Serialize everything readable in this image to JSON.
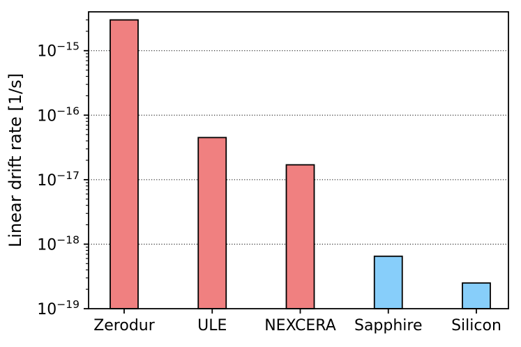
{
  "figure": {
    "background": "#ffffff",
    "frame_color": "#000000",
    "grid_style": "dotted"
  },
  "chart_data": {
    "type": "bar",
    "title": "",
    "xlabel": "",
    "ylabel": "Linear drift rate [1/s]",
    "categories": [
      "Zerodur",
      "ULE",
      "NEXCERA",
      "Sapphire",
      "Silicon"
    ],
    "values": [
      3e-15,
      4.5e-17,
      1.7e-17,
      6.5e-19,
      2.5e-19
    ],
    "bar_colors": [
      "#F08080",
      "#F08080",
      "#F08080",
      "#87CEFA",
      "#87CEFA"
    ],
    "bar_edge_color": "#000000",
    "yscale": "log",
    "ylim": [
      1e-19,
      4e-15
    ],
    "ytick_exponents": [
      -15,
      -16,
      -17,
      -18,
      -19
    ],
    "ytick_base": "10",
    "grid": "horizontal dotted lines at major y ticks",
    "legend": "none"
  }
}
